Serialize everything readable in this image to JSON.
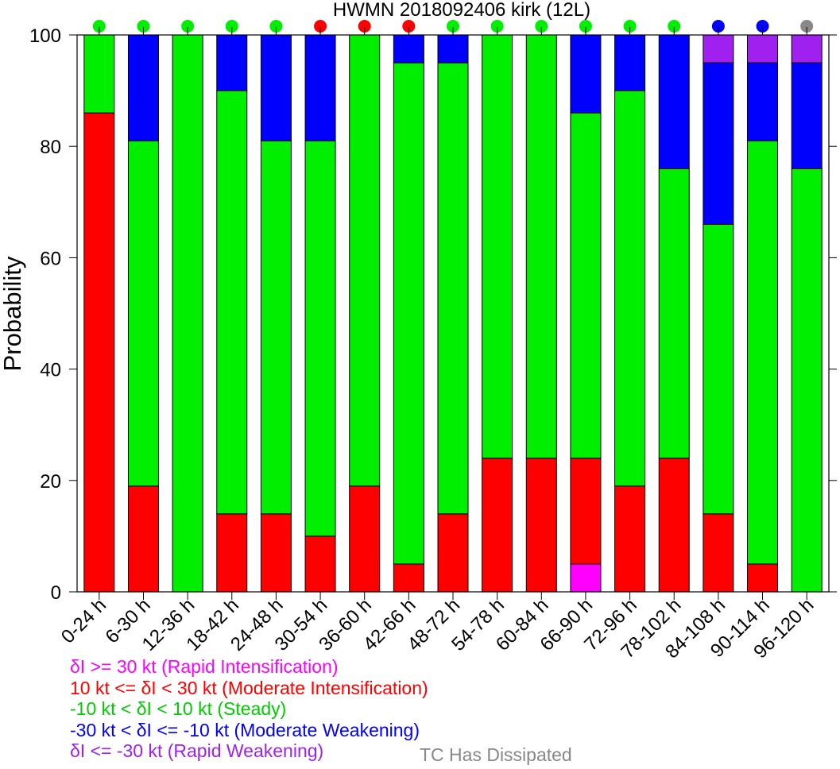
{
  "chart_data": {
    "type": "bar",
    "stacked": true,
    "title": "HWMN 2018092406 kirk (12L)",
    "xlabel": "",
    "ylabel": "Probability",
    "ylim": [
      0,
      100
    ],
    "yticks": [
      0,
      20,
      40,
      60,
      80,
      100
    ],
    "grid": false,
    "categories": [
      "0-24 h",
      "6-30 h",
      "12-36 h",
      "18-42 h",
      "24-48 h",
      "30-54 h",
      "36-60 h",
      "42-66 h",
      "48-72 h",
      "54-78 h",
      "60-84 h",
      "66-90 h",
      "72-96 h",
      "78-102 h",
      "84-108 h",
      "90-114 h",
      "96-120 h"
    ],
    "series": [
      {
        "key": "ri",
        "color": "#ff00ff",
        "values": [
          0,
          0,
          0,
          0,
          0,
          0,
          0,
          0,
          0,
          0,
          0,
          5,
          0,
          0,
          0,
          0,
          0
        ]
      },
      {
        "key": "mi",
        "color": "#ff0000",
        "values": [
          86,
          19,
          0,
          14,
          14,
          10,
          19,
          5,
          14,
          24,
          24,
          19,
          19,
          24,
          14,
          5,
          0
        ]
      },
      {
        "key": "st",
        "color": "#00ee00",
        "values": [
          14,
          62,
          100,
          76,
          67,
          71,
          81,
          90,
          81,
          76,
          76,
          62,
          71,
          52,
          52,
          76,
          76
        ]
      },
      {
        "key": "mw",
        "color": "#0000ff",
        "values": [
          0,
          19,
          0,
          10,
          19,
          19,
          0,
          5,
          5,
          0,
          0,
          14,
          10,
          24,
          29,
          14,
          19
        ]
      },
      {
        "key": "rw",
        "color": "#a020f0",
        "values": [
          0,
          0,
          0,
          0,
          0,
          0,
          0,
          0,
          0,
          0,
          0,
          0,
          0,
          0,
          5,
          5,
          5
        ]
      }
    ],
    "top_markers": [
      "#00ee00",
      "#00ee00",
      "#00ee00",
      "#00ee00",
      "#00ee00",
      "#ff0000",
      "#ff0000",
      "#ff0000",
      "#00ee00",
      "#00ee00",
      "#00ee00",
      "#00ee00",
      "#00ee00",
      "#00ee00",
      "#0000ff",
      "#0000ff",
      "#888888"
    ]
  },
  "legend": [
    {
      "text": "δI >= 30 kt (Rapid Intensification)",
      "color": "#ff00ff"
    },
    {
      "text": "10 kt <= δI < 30 kt (Moderate Intensification)",
      "color": "#ff0000"
    },
    {
      "text": "-10 kt < δI < 10 kt (Steady)",
      "color": "#00cc00"
    },
    {
      "text": "-30 kt < δI <= -10 kt (Moderate Weakening)",
      "color": "#0000ff"
    },
    {
      "text": "δI <= -30 kt (Rapid Weakening)",
      "color": "#a020f0"
    }
  ],
  "dissipated": {
    "text": "TC Has Dissipated",
    "color": "#888888"
  }
}
